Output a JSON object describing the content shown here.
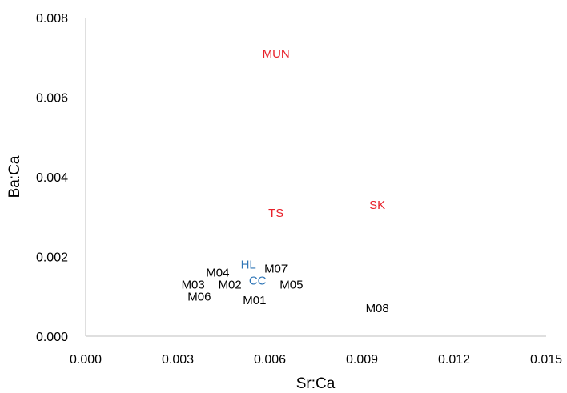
{
  "chart_data": {
    "type": "scatter",
    "title": "",
    "xlabel": "Sr:Ca",
    "ylabel": "Ba:Ca",
    "xlim": [
      0.0,
      0.015
    ],
    "ylim": [
      0.0,
      0.008
    ],
    "x_ticks": [
      "0.000",
      "0.003",
      "0.006",
      "0.009",
      "0.012",
      "0.015"
    ],
    "y_ticks": [
      "0.000",
      "0.002",
      "0.004",
      "0.006",
      "0.008"
    ],
    "grid": false,
    "colors": {
      "red": "#e8202a",
      "blue": "#2e75b6",
      "black": "#000000"
    },
    "points": [
      {
        "label": "MUN",
        "x": 0.0062,
        "y": 0.0071,
        "color": "red"
      },
      {
        "label": "TS",
        "x": 0.0062,
        "y": 0.0031,
        "color": "red"
      },
      {
        "label": "SK",
        "x": 0.0095,
        "y": 0.0033,
        "color": "red"
      },
      {
        "label": "HL",
        "x": 0.0053,
        "y": 0.0018,
        "color": "blue"
      },
      {
        "label": "CC",
        "x": 0.0056,
        "y": 0.0014,
        "color": "blue"
      },
      {
        "label": "M07",
        "x": 0.0062,
        "y": 0.0017,
        "color": "black"
      },
      {
        "label": "M04",
        "x": 0.0043,
        "y": 0.0016,
        "color": "black"
      },
      {
        "label": "M03",
        "x": 0.0035,
        "y": 0.0013,
        "color": "black"
      },
      {
        "label": "M02",
        "x": 0.0047,
        "y": 0.0013,
        "color": "black"
      },
      {
        "label": "M05",
        "x": 0.0067,
        "y": 0.0013,
        "color": "black"
      },
      {
        "label": "M06",
        "x": 0.0037,
        "y": 0.001,
        "color": "black"
      },
      {
        "label": "M01",
        "x": 0.0055,
        "y": 0.0009,
        "color": "black"
      },
      {
        "label": "M08",
        "x": 0.0095,
        "y": 0.0007,
        "color": "black"
      }
    ]
  }
}
